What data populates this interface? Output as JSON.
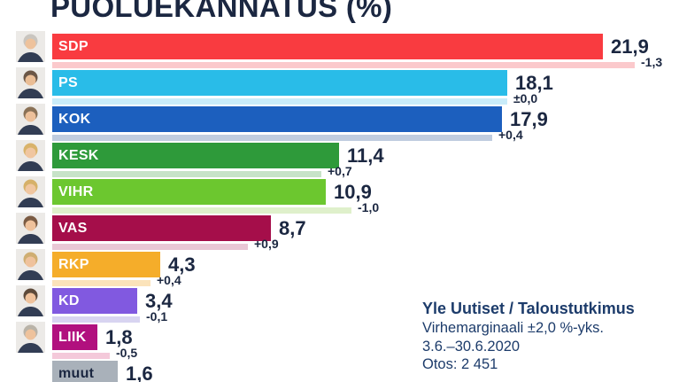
{
  "title": "PUOLUEKANNATUS (%)",
  "source": {
    "publisher": "Yle Uutiset / Taloustutkimus",
    "margin_of_error": "Virhemarginaali ±2,0 %-yks.",
    "period": "3.6.–30.6.2020",
    "sample": "Otos: 2 451"
  },
  "colors": {
    "title_text": "#1b2741",
    "value_text": "#1b2741",
    "change_text": "#1b2741",
    "source_text": "#1d3c6b",
    "background": "#ffffff",
    "portrait_bg": "#eceae7",
    "portrait_suit": "#323d54"
  },
  "chart_data": {
    "type": "bar",
    "orientation": "horizontal",
    "unit": "%",
    "title": "PUOLUEKANNATUS (%)",
    "legend": "main bar = current support, pale bar = previous poll, small label = change in %-units",
    "categories": [
      "SDP",
      "PS",
      "KOK",
      "KESK",
      "VIHR",
      "VAS",
      "RKP",
      "KD",
      "LIIK",
      "muut"
    ],
    "values": [
      21.9,
      18.1,
      17.9,
      11.4,
      10.9,
      8.7,
      4.3,
      3.4,
      1.8,
      1.6
    ],
    "changes": [
      -1.3,
      0.0,
      0.4,
      0.7,
      -1.0,
      0.9,
      0.4,
      -0.1,
      -0.5,
      null
    ],
    "rows": [
      {
        "party": "SDP",
        "value_label": "21,9",
        "value": 21.9,
        "change_label": "-1,3",
        "change": -1.3,
        "color": "#f93b40",
        "light_color": "#fbc9cc",
        "label_color": "#ffffff",
        "portrait": {
          "hair": "#c9c5bf",
          "skin": "#eec29c"
        }
      },
      {
        "party": "PS",
        "value_label": "18,1",
        "value": 18.1,
        "change_label": "±0,0",
        "change": 0.0,
        "color": "#29bce8",
        "light_color": "#c9ecf9",
        "label_color": "#ffffff",
        "portrait": {
          "hair": "#6b5646",
          "skin": "#eabd95"
        }
      },
      {
        "party": "KOK",
        "value_label": "17,9",
        "value": 17.9,
        "change_label": "+0,4",
        "change": 0.4,
        "color": "#1c5fbe",
        "light_color": "#bfccdf",
        "label_color": "#ffffff",
        "portrait": {
          "hair": "#8a7156",
          "skin": "#edc09a"
        }
      },
      {
        "party": "KESK",
        "value_label": "11,4",
        "value": 11.4,
        "change_label": "+0,7",
        "change": 0.7,
        "color": "#2e9a3a",
        "light_color": "#c7e3c8",
        "label_color": "#ffffff",
        "portrait": {
          "hair": "#d9b36a",
          "skin": "#f0c6a0"
        }
      },
      {
        "party": "VIHR",
        "value_label": "10,9",
        "value": 10.9,
        "change_label": "-1,0",
        "change": -1.0,
        "color": "#6cc72f",
        "light_color": "#dff0cb",
        "label_color": "#ffffff",
        "portrait": {
          "hair": "#d6b169",
          "skin": "#f0c6a0"
        }
      },
      {
        "party": "VAS",
        "value_label": "8,7",
        "value": 8.7,
        "change_label": "+0,9",
        "change": 0.9,
        "color": "#a50e4a",
        "light_color": "#e9c7d5",
        "label_color": "#ffffff",
        "portrait": {
          "hair": "#7b5b43",
          "skin": "#efc29c"
        }
      },
      {
        "party": "RKP",
        "value_label": "4,3",
        "value": 4.3,
        "change_label": "+0,4",
        "change": 0.4,
        "color": "#f5ad2a",
        "light_color": "#fbe3ba",
        "label_color": "#ffffff",
        "portrait": {
          "hair": "#cfae72",
          "skin": "#efc29c"
        }
      },
      {
        "party": "KD",
        "value_label": "3,4",
        "value": 3.4,
        "change_label": "-0,1",
        "change": -0.1,
        "color": "#8159e0",
        "light_color": "#d8d4f1",
        "label_color": "#ffffff",
        "portrait": {
          "hair": "#5d4a3a",
          "skin": "#efc29c"
        }
      },
      {
        "party": "LIIK",
        "value_label": "1,8",
        "value": 1.8,
        "change_label": "-0,5",
        "change": -0.5,
        "color": "#b1107e",
        "light_color": "#f4c9da",
        "label_color": "#ffffff",
        "portrait": {
          "hair": "#b9b3a8",
          "skin": "#eec29c"
        }
      },
      {
        "party": "muut",
        "value_label": "1,6",
        "value": 1.6,
        "change_label": null,
        "change": null,
        "color": "#a9b1ba",
        "light_color": null,
        "label_color": "#1b2741",
        "portrait": null
      }
    ]
  }
}
